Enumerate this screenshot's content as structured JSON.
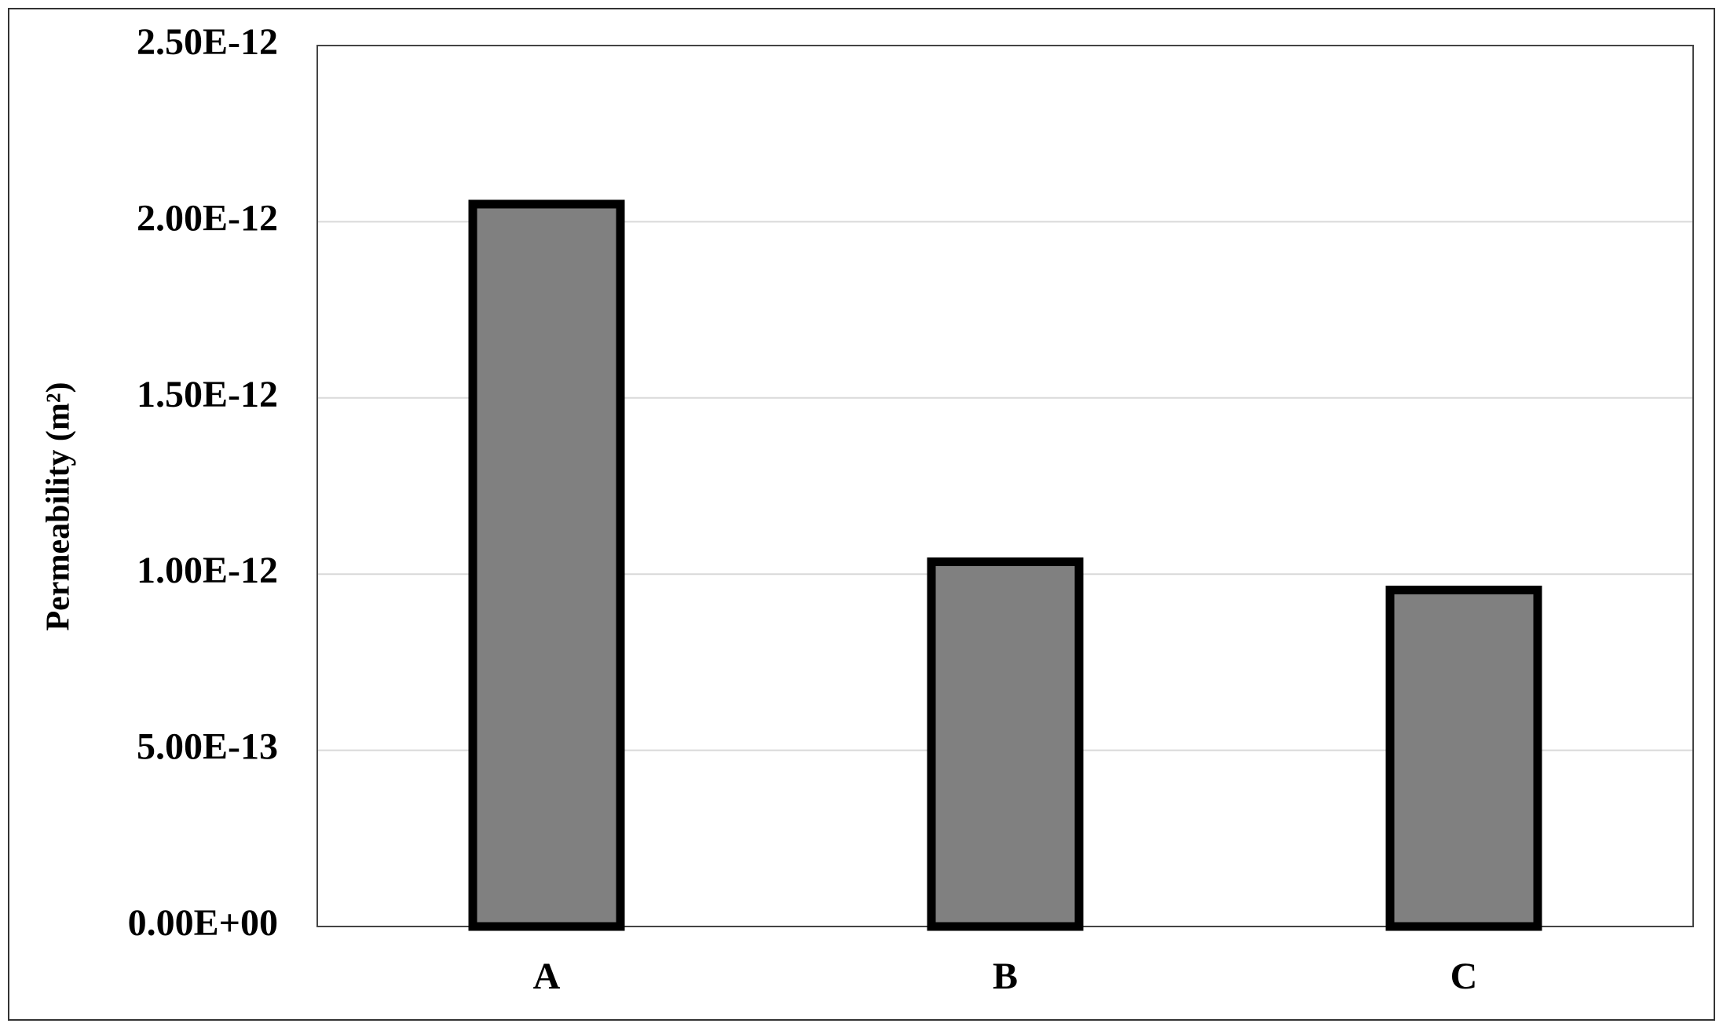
{
  "chart_data": {
    "type": "bar",
    "y_label": "Permeability (m²)",
    "categories": [
      "A",
      "B",
      "C"
    ],
    "values": [
      2.05e-12,
      1.035e-12,
      9.55e-13
    ],
    "color": "#808080",
    "ylim": [
      0,
      2.5e-12
    ],
    "yticks": [
      {
        "value": 0,
        "label": "0.00E+00"
      },
      {
        "value": 5e-13,
        "label": "5.00E-13"
      },
      {
        "value": 1e-12,
        "label": "1.00E-12"
      },
      {
        "value": 1.5e-12,
        "label": "1.50E-12"
      },
      {
        "value": 2e-12,
        "label": "2.00E-12"
      },
      {
        "value": 2.5e-12,
        "label": "2.50E-12"
      }
    ],
    "grid": true
  }
}
